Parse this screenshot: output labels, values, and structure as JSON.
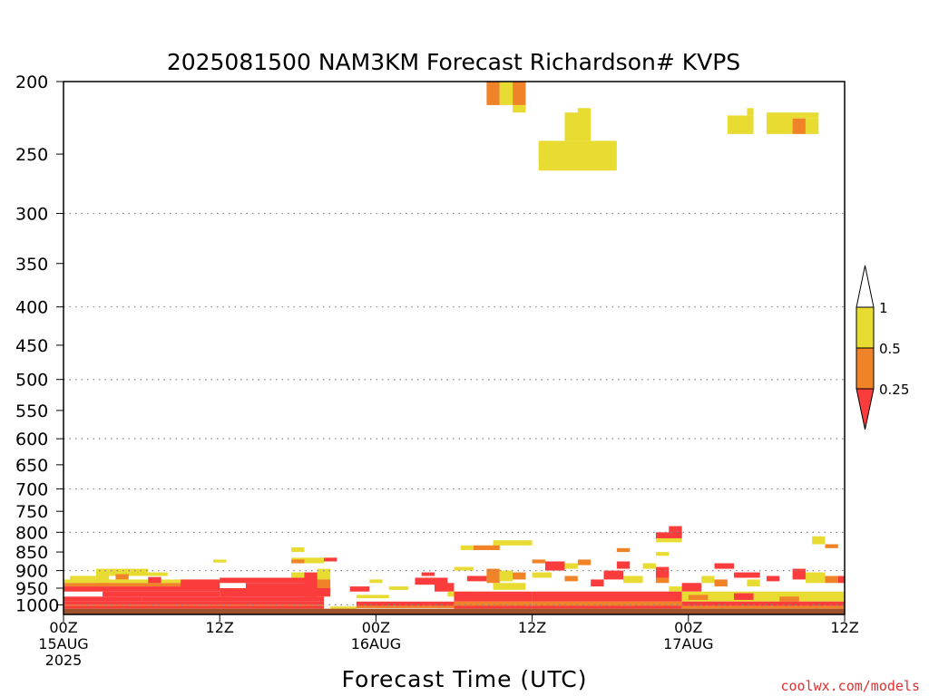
{
  "chart_data": {
    "type": "heatmap",
    "title": "2025081500 NAM3KM Forecast Richardson# KVPS",
    "xlabel": "Forecast Time (UTC)",
    "ylabel": "",
    "x_unit": "forecast hours",
    "xlim": [
      0,
      60
    ],
    "ylim": [
      200,
      1030
    ],
    "y_scale": "log-pressure (inverted)",
    "grid": "horizontal dotted at labeled pressure levels",
    "y_ticks": [
      "200",
      "250",
      "300",
      "350",
      "400",
      "450",
      "500",
      "550",
      "600",
      "650",
      "700",
      "750",
      "800",
      "850",
      "900",
      "950",
      "1000"
    ],
    "x_ticks": [
      {
        "line1": "00Z",
        "line2": "15AUG",
        "line3": "2025"
      },
      {
        "line1": "12Z",
        "line2": "",
        "line3": ""
      },
      {
        "line1": "00Z",
        "line2": "16AUG",
        "line3": ""
      },
      {
        "line1": "12Z",
        "line2": "",
        "line3": ""
      },
      {
        "line1": "00Z",
        "line2": "17AUG",
        "line3": ""
      },
      {
        "line1": "12Z",
        "line2": "",
        "line3": ""
      }
    ],
    "legend": {
      "placement": "right",
      "levels": [
        "1",
        "0.5",
        "0.25"
      ],
      "colors": {
        "gt1": "#ffffff",
        "0.5-1": "#e8dc32",
        "0.25-0.5": "#f08228",
        "lt0.25": "#fa3c3c"
      }
    },
    "surface_color": "#a0522d",
    "cells": [
      {
        "x0": 32.5,
        "x1": 33.5,
        "p0": 200,
        "p1": 215,
        "c": "o"
      },
      {
        "x0": 33.5,
        "x1": 34.5,
        "p0": 200,
        "p1": 215,
        "c": "y"
      },
      {
        "x0": 34.5,
        "x1": 35.5,
        "p0": 200,
        "p1": 215,
        "c": "o"
      },
      {
        "x0": 34.5,
        "x1": 35.5,
        "p0": 215,
        "p1": 220,
        "c": "y"
      },
      {
        "x0": 38.5,
        "x1": 40.5,
        "p0": 220,
        "p1": 240,
        "c": "y"
      },
      {
        "x0": 39.5,
        "x1": 40.5,
        "p0": 217,
        "p1": 222,
        "c": "y"
      },
      {
        "x0": 36.5,
        "x1": 42.5,
        "p0": 240,
        "p1": 263,
        "c": "y"
      },
      {
        "x0": 36.5,
        "x1": 37.5,
        "p0": 242,
        "p1": 258,
        "c": "y"
      },
      {
        "x0": 51.0,
        "x1": 53.0,
        "p0": 222,
        "p1": 235,
        "c": "y"
      },
      {
        "x0": 52.5,
        "x1": 53.0,
        "p0": 217,
        "p1": 222,
        "c": "y"
      },
      {
        "x0": 54.0,
        "x1": 56.0,
        "p0": 220,
        "p1": 235,
        "c": "y"
      },
      {
        "x0": 56.0,
        "x1": 57.0,
        "p0": 224,
        "p1": 235,
        "c": "o"
      },
      {
        "x0": 56.0,
        "x1": 58.0,
        "p0": 220,
        "p1": 224,
        "c": "y"
      },
      {
        "x0": 57.0,
        "x1": 58.0,
        "p0": 224,
        "p1": 235,
        "c": "y"
      },
      {
        "x0": 46.5,
        "x1": 47.5,
        "p0": 785,
        "p1": 810,
        "c": "r"
      },
      {
        "x0": 45.5,
        "x1": 47.5,
        "p0": 800,
        "p1": 815,
        "c": "r"
      },
      {
        "x0": 45.5,
        "x1": 47.5,
        "p0": 815,
        "p1": 825,
        "c": "y"
      },
      {
        "x0": 33.0,
        "x1": 36.0,
        "p0": 820,
        "p1": 833,
        "c": "y"
      },
      {
        "x0": 30.5,
        "x1": 33.5,
        "p0": 833,
        "p1": 845,
        "c": "y"
      },
      {
        "x0": 31.5,
        "x1": 33.5,
        "p0": 833,
        "p1": 845,
        "c": "o"
      },
      {
        "x0": 17.5,
        "x1": 18.5,
        "p0": 838,
        "p1": 850,
        "c": "y"
      },
      {
        "x0": 11.5,
        "x1": 12.5,
        "p0": 870,
        "p1": 878,
        "c": "y"
      },
      {
        "x0": 17.5,
        "x1": 20.0,
        "p0": 865,
        "p1": 880,
        "c": "y"
      },
      {
        "x0": 17.5,
        "x1": 18.5,
        "p0": 870,
        "p1": 880,
        "c": "o"
      },
      {
        "x0": 20.0,
        "x1": 21.0,
        "p0": 865,
        "p1": 875,
        "c": "r"
      },
      {
        "x0": 57.5,
        "x1": 58.5,
        "p0": 810,
        "p1": 830,
        "c": "y"
      },
      {
        "x0": 58.5,
        "x1": 59.5,
        "p0": 830,
        "p1": 840,
        "c": "o"
      },
      {
        "x0": 42.5,
        "x1": 43.5,
        "p0": 840,
        "p1": 850,
        "c": "o"
      },
      {
        "x0": 45.5,
        "x1": 46.5,
        "p0": 850,
        "p1": 860,
        "c": "y"
      },
      {
        "x0": 2.5,
        "x1": 3.5,
        "p0": 895,
        "p1": 945,
        "c": "y"
      },
      {
        "x0": 3.5,
        "x1": 6.5,
        "p0": 895,
        "p1": 915,
        "c": "y"
      },
      {
        "x0": 0.5,
        "x1": 2.5,
        "p0": 915,
        "p1": 925,
        "c": "y"
      },
      {
        "x0": 4.0,
        "x1": 5.0,
        "p0": 910,
        "p1": 925,
        "c": "o"
      },
      {
        "x0": 6.5,
        "x1": 8.0,
        "p0": 905,
        "p1": 915,
        "c": "y"
      },
      {
        "x0": 0.0,
        "x1": 12.0,
        "p0": 925,
        "p1": 935,
        "c": "y"
      },
      {
        "x0": 0.0,
        "x1": 12.0,
        "p0": 935,
        "p1": 945,
        "c": "o"
      },
      {
        "x0": 6.5,
        "x1": 7.5,
        "p0": 918,
        "p1": 935,
        "c": "r"
      },
      {
        "x0": 9.0,
        "x1": 12.0,
        "p0": 925,
        "p1": 950,
        "c": "r"
      },
      {
        "x0": 12.0,
        "x1": 19.5,
        "p0": 920,
        "p1": 935,
        "c": "r"
      },
      {
        "x0": 14.0,
        "x1": 19.5,
        "p0": 935,
        "p1": 950,
        "c": "r"
      },
      {
        "x0": 18.5,
        "x1": 19.5,
        "p0": 905,
        "p1": 975,
        "c": "r"
      },
      {
        "x0": 17.5,
        "x1": 18.5,
        "p0": 905,
        "p1": 920,
        "c": "y"
      },
      {
        "x0": 19.5,
        "x1": 20.5,
        "p0": 895,
        "p1": 925,
        "c": "y"
      },
      {
        "x0": 19.5,
        "x1": 20.5,
        "p0": 925,
        "p1": 965,
        "c": "o"
      },
      {
        "x0": 16.0,
        "x1": 17.0,
        "p0": 950,
        "p1": 962,
        "c": "y"
      },
      {
        "x0": 0.0,
        "x1": 12.0,
        "p0": 945,
        "p1": 960,
        "c": "r"
      },
      {
        "x0": 3.0,
        "x1": 12.0,
        "p0": 960,
        "p1": 975,
        "c": "r"
      },
      {
        "x0": 12.0,
        "x1": 20.5,
        "p0": 950,
        "p1": 975,
        "c": "r"
      },
      {
        "x0": 0.0,
        "x1": 6.0,
        "p0": 975,
        "p1": 990,
        "c": "r"
      },
      {
        "x0": 0.0,
        "x1": 20.0,
        "p0": 990,
        "p1": 1000,
        "c": "r"
      },
      {
        "x0": 6.0,
        "x1": 20.0,
        "p0": 975,
        "p1": 990,
        "c": "r"
      },
      {
        "x0": 0.0,
        "x1": 20.0,
        "p0": 1000,
        "p1": 1003,
        "c": "o"
      },
      {
        "x0": 0.0,
        "x1": 20.0,
        "p0": 1003,
        "p1": 1012,
        "c": "r"
      },
      {
        "x0": 20.5,
        "x1": 22.5,
        "p0": 1005,
        "p1": 1012,
        "c": "y"
      },
      {
        "x0": 22.0,
        "x1": 23.5,
        "p0": 945,
        "p1": 960,
        "c": "r"
      },
      {
        "x0": 22.5,
        "x1": 25.0,
        "p0": 970,
        "p1": 980,
        "c": "y"
      },
      {
        "x0": 23.5,
        "x1": 24.5,
        "p0": 925,
        "p1": 935,
        "c": "y"
      },
      {
        "x0": 25.0,
        "x1": 26.5,
        "p0": 945,
        "p1": 955,
        "c": "y"
      },
      {
        "x0": 22.5,
        "x1": 30.0,
        "p0": 990,
        "p1": 1003,
        "c": "r"
      },
      {
        "x0": 22.5,
        "x1": 30.0,
        "p0": 1003,
        "p1": 1010,
        "c": "o"
      },
      {
        "x0": 27.5,
        "x1": 28.5,
        "p0": 905,
        "p1": 915,
        "c": "r"
      },
      {
        "x0": 27.0,
        "x1": 29.5,
        "p0": 920,
        "p1": 940,
        "c": "r"
      },
      {
        "x0": 28.5,
        "x1": 30.0,
        "p0": 935,
        "p1": 960,
        "c": "r"
      },
      {
        "x0": 29.5,
        "x1": 31.5,
        "p0": 960,
        "p1": 975,
        "c": "y"
      },
      {
        "x0": 30.0,
        "x1": 31.5,
        "p0": 890,
        "p1": 900,
        "c": "y"
      },
      {
        "x0": 31.0,
        "x1": 32.5,
        "p0": 915,
        "p1": 930,
        "c": "r"
      },
      {
        "x0": 32.5,
        "x1": 33.5,
        "p0": 895,
        "p1": 935,
        "c": "o"
      },
      {
        "x0": 33.5,
        "x1": 34.5,
        "p0": 900,
        "p1": 930,
        "c": "y"
      },
      {
        "x0": 34.5,
        "x1": 35.5,
        "p0": 905,
        "p1": 925,
        "c": "o"
      },
      {
        "x0": 33.0,
        "x1": 35.5,
        "p0": 935,
        "p1": 955,
        "c": "y"
      },
      {
        "x0": 30.0,
        "x1": 36.0,
        "p0": 960,
        "p1": 990,
        "c": "r"
      },
      {
        "x0": 30.0,
        "x1": 36.0,
        "p0": 990,
        "p1": 1003,
        "c": "o"
      },
      {
        "x0": 30.0,
        "x1": 36.0,
        "p0": 1003,
        "p1": 1012,
        "c": "r"
      },
      {
        "x0": 36.0,
        "x1": 37.0,
        "p0": 870,
        "p1": 880,
        "c": "o"
      },
      {
        "x0": 36.0,
        "x1": 37.5,
        "p0": 905,
        "p1": 920,
        "c": "y"
      },
      {
        "x0": 37.0,
        "x1": 38.5,
        "p0": 875,
        "p1": 900,
        "c": "r"
      },
      {
        "x0": 38.5,
        "x1": 39.5,
        "p0": 880,
        "p1": 895,
        "c": "y"
      },
      {
        "x0": 38.5,
        "x1": 39.5,
        "p0": 915,
        "p1": 930,
        "c": "o"
      },
      {
        "x0": 39.5,
        "x1": 40.5,
        "p0": 870,
        "p1": 885,
        "c": "o"
      },
      {
        "x0": 40.5,
        "x1": 41.5,
        "p0": 925,
        "p1": 945,
        "c": "r"
      },
      {
        "x0": 41.5,
        "x1": 43.0,
        "p0": 900,
        "p1": 925,
        "c": "r"
      },
      {
        "x0": 42.5,
        "x1": 43.5,
        "p0": 875,
        "p1": 895,
        "c": "r"
      },
      {
        "x0": 43.0,
        "x1": 44.5,
        "p0": 915,
        "p1": 935,
        "c": "y"
      },
      {
        "x0": 44.5,
        "x1": 45.5,
        "p0": 880,
        "p1": 895,
        "c": "y"
      },
      {
        "x0": 45.5,
        "x1": 46.5,
        "p0": 890,
        "p1": 920,
        "c": "r"
      },
      {
        "x0": 45.5,
        "x1": 46.5,
        "p0": 920,
        "p1": 935,
        "c": "o"
      },
      {
        "x0": 46.5,
        "x1": 47.5,
        "p0": 945,
        "p1": 960,
        "c": "y"
      },
      {
        "x0": 36.0,
        "x1": 47.5,
        "p0": 960,
        "p1": 990,
        "c": "r"
      },
      {
        "x0": 36.0,
        "x1": 47.5,
        "p0": 990,
        "p1": 1003,
        "c": "o"
      },
      {
        "x0": 36.0,
        "x1": 47.5,
        "p0": 1003,
        "p1": 1012,
        "c": "r"
      },
      {
        "x0": 47.5,
        "x1": 49.0,
        "p0": 935,
        "p1": 960,
        "c": "r"
      },
      {
        "x0": 49.0,
        "x1": 50.0,
        "p0": 915,
        "p1": 935,
        "c": "y"
      },
      {
        "x0": 50.0,
        "x1": 51.5,
        "p0": 880,
        "p1": 895,
        "c": "r"
      },
      {
        "x0": 50.0,
        "x1": 51.0,
        "p0": 925,
        "p1": 945,
        "c": "o"
      },
      {
        "x0": 51.5,
        "x1": 53.5,
        "p0": 905,
        "p1": 920,
        "c": "r"
      },
      {
        "x0": 52.5,
        "x1": 53.5,
        "p0": 925,
        "p1": 945,
        "c": "y"
      },
      {
        "x0": 54.0,
        "x1": 55.0,
        "p0": 915,
        "p1": 930,
        "c": "r"
      },
      {
        "x0": 56.0,
        "x1": 57.0,
        "p0": 895,
        "p1": 925,
        "c": "r"
      },
      {
        "x0": 57.0,
        "x1": 58.5,
        "p0": 905,
        "p1": 935,
        "c": "y"
      },
      {
        "x0": 58.5,
        "x1": 59.5,
        "p0": 915,
        "p1": 935,
        "c": "o"
      },
      {
        "x0": 59.5,
        "x1": 60.0,
        "p0": 915,
        "p1": 935,
        "c": "r"
      },
      {
        "x0": 47.5,
        "x1": 60.0,
        "p0": 960,
        "p1": 990,
        "c": "y"
      },
      {
        "x0": 48.0,
        "x1": 49.5,
        "p0": 970,
        "p1": 985,
        "c": "o"
      },
      {
        "x0": 51.5,
        "x1": 53.0,
        "p0": 965,
        "p1": 985,
        "c": "r"
      },
      {
        "x0": 55.0,
        "x1": 56.5,
        "p0": 975,
        "p1": 990,
        "c": "o"
      },
      {
        "x0": 47.5,
        "x1": 60.0,
        "p0": 990,
        "p1": 1003,
        "c": "r"
      },
      {
        "x0": 47.5,
        "x1": 60.0,
        "p0": 1003,
        "p1": 1012,
        "c": "o"
      }
    ]
  },
  "credit": "coolwx.com/models"
}
